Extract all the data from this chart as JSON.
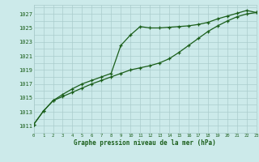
{
  "line1_x": [
    0,
    1,
    2,
    3,
    4,
    5,
    6,
    7,
    8,
    9,
    10,
    11,
    12,
    13,
    14,
    15,
    16,
    17,
    18,
    19,
    20,
    21,
    22,
    23
  ],
  "line1_y": [
    1011.2,
    1013.1,
    1014.6,
    1015.5,
    1016.3,
    1017.0,
    1017.5,
    1018.0,
    1018.5,
    1022.5,
    1024.0,
    1025.2,
    1025.0,
    1025.0,
    1025.1,
    1025.2,
    1025.3,
    1025.5,
    1025.8,
    1026.3,
    1026.7,
    1027.1,
    1027.5,
    1027.2
  ],
  "line2_x": [
    0,
    1,
    2,
    3,
    4,
    5,
    6,
    7,
    8,
    9,
    10,
    11,
    12,
    13,
    14,
    15,
    16,
    17,
    18,
    19,
    20,
    21,
    22,
    23
  ],
  "line2_y": [
    1011.2,
    1013.1,
    1014.6,
    1015.2,
    1015.8,
    1016.4,
    1017.0,
    1017.5,
    1018.0,
    1018.5,
    1019.0,
    1019.3,
    1019.6,
    1020.0,
    1020.6,
    1021.5,
    1022.5,
    1023.5,
    1024.5,
    1025.3,
    1026.0,
    1026.6,
    1027.0,
    1027.2
  ],
  "line_color": "#1a5e1a",
  "marker_color": "#1a5e1a",
  "bg_color": "#cceaea",
  "grid_color": "#aacccc",
  "text_color": "#1a5e1a",
  "xlabel": "Graphe pression niveau de la mer (hPa)",
  "ylim_min": 1010,
  "ylim_max": 1028,
  "xlim_min": 0,
  "xlim_max": 23,
  "yticks": [
    1011,
    1013,
    1015,
    1017,
    1019,
    1021,
    1023,
    1025,
    1027
  ],
  "xticks": [
    0,
    1,
    2,
    3,
    4,
    5,
    6,
    7,
    8,
    9,
    10,
    11,
    12,
    13,
    14,
    15,
    16,
    17,
    18,
    19,
    20,
    21,
    22,
    23
  ]
}
